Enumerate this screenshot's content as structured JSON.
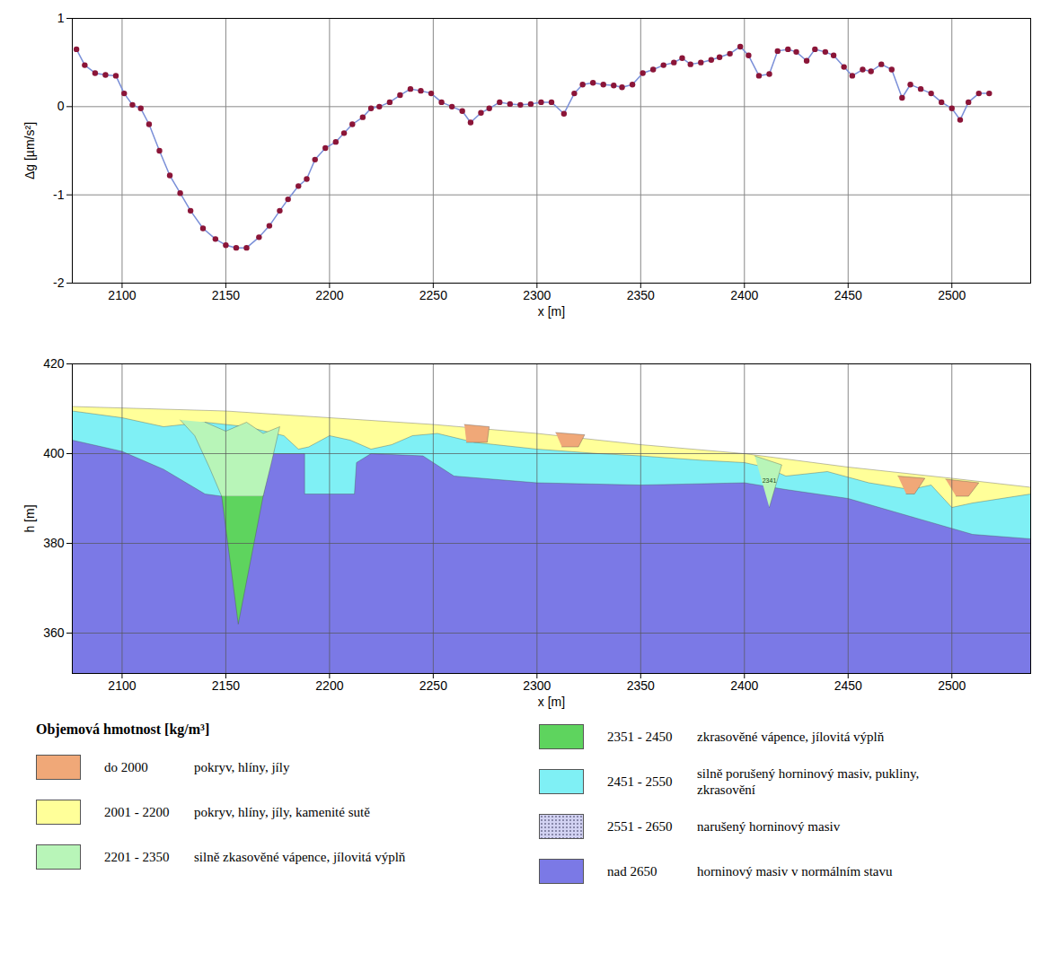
{
  "chart_data": [
    {
      "type": "line",
      "marker": "circle",
      "color": "#7a8fd8",
      "grid": true,
      "x_label": "x [m]",
      "y_label": "Δg [µm/s²]",
      "xlim": [
        2076,
        2538
      ],
      "ylim": [
        -2,
        1
      ],
      "xticks": [
        2100,
        2150,
        2200,
        2250,
        2300,
        2350,
        2400,
        2450,
        2500
      ],
      "yticks": [
        -2,
        -1,
        0,
        1
      ],
      "x": [
        2078,
        2082,
        2087,
        2092,
        2097,
        2101,
        2105,
        2109,
        2113,
        2118,
        2123,
        2128,
        2133,
        2139,
        2145,
        2150,
        2155,
        2160,
        2166,
        2171,
        2176,
        2180,
        2185,
        2189,
        2193,
        2198,
        2203,
        2207,
        2211,
        2216,
        2220,
        2224,
        2229,
        2234,
        2239,
        2244,
        2249,
        2254,
        2259,
        2264,
        2268,
        2273,
        2277,
        2282,
        2287,
        2292,
        2297,
        2302,
        2307,
        2313,
        2318,
        2322,
        2327,
        2332,
        2337,
        2341,
        2346,
        2351,
        2356,
        2361,
        2366,
        2370,
        2374,
        2379,
        2384,
        2388,
        2393,
        2398,
        2402,
        2407,
        2412,
        2416,
        2421,
        2425,
        2430,
        2434,
        2439,
        2443,
        2448,
        2452,
        2457,
        2461,
        2466,
        2471,
        2476,
        2480,
        2485,
        2490,
        2495,
        2500,
        2504,
        2508,
        2513,
        2518
      ],
      "values": [
        0.65,
        0.47,
        0.38,
        0.36,
        0.35,
        0.15,
        0.02,
        -0.02,
        -0.2,
        -0.5,
        -0.78,
        -0.98,
        -1.18,
        -1.38,
        -1.5,
        -1.57,
        -1.6,
        -1.6,
        -1.48,
        -1.35,
        -1.18,
        -1.05,
        -0.9,
        -0.82,
        -0.6,
        -0.47,
        -0.4,
        -0.3,
        -0.2,
        -0.12,
        -0.02,
        0.0,
        0.05,
        0.13,
        0.2,
        0.18,
        0.15,
        0.05,
        0.0,
        -0.05,
        -0.18,
        -0.07,
        -0.02,
        0.05,
        0.03,
        0.02,
        0.03,
        0.05,
        0.05,
        -0.08,
        0.15,
        0.25,
        0.27,
        0.25,
        0.24,
        0.22,
        0.25,
        0.38,
        0.42,
        0.47,
        0.5,
        0.55,
        0.48,
        0.5,
        0.53,
        0.56,
        0.6,
        0.68,
        0.58,
        0.35,
        0.37,
        0.63,
        0.65,
        0.62,
        0.52,
        0.65,
        0.62,
        0.58,
        0.45,
        0.35,
        0.42,
        0.4,
        0.48,
        0.42,
        0.1,
        0.25,
        0.2,
        0.15,
        0.05,
        -0.02,
        -0.15,
        0.05,
        0.15,
        0.15
      ]
    },
    {
      "type": "area",
      "grid": true,
      "legend": "bottom",
      "x_label": "x [m]",
      "y_label": "h [m]",
      "xlim": [
        2076,
        2538
      ],
      "ylim": [
        351,
        420
      ],
      "xticks": [
        2100,
        2150,
        2200,
        2250,
        2300,
        2350,
        2400,
        2450,
        2500
      ],
      "yticks": [
        360,
        380,
        400,
        420
      ],
      "legend_title": "Objemová hmotnost [kg/m³]",
      "series": [
        {
          "name": "do 2000",
          "description": "pokryv, hlíny, jíly",
          "color": "#f0a878",
          "polygons": [
            [
              [
                2265,
                406.5
              ],
              [
                2277,
                406
              ],
              [
                2276,
                402.5
              ],
              [
                2266,
                402.5
              ]
            ],
            [
              [
                2309,
                404.7
              ],
              [
                2323,
                404.2
              ],
              [
                2320,
                401.5
              ],
              [
                2312,
                401.5
              ]
            ],
            [
              [
                2474,
                395
              ],
              [
                2487,
                394.5
              ],
              [
                2482,
                391
              ],
              [
                2478,
                391
              ]
            ],
            [
              [
                2497,
                394.3
              ],
              [
                2513,
                393.5
              ],
              [
                2508,
                390.5
              ],
              [
                2502,
                390.5
              ]
            ]
          ]
        },
        {
          "name": "2001 - 2200",
          "description": "pokryv, hlíny, jíly, kamenité sutě",
          "color": "#ffff99",
          "polygons": [
            [
              [
                2076,
                351
              ],
              [
                2076,
                410.5
              ],
              [
                2150,
                409.5
              ],
              [
                2200,
                408
              ],
              [
                2250,
                406.5
              ],
              [
                2300,
                404.5
              ],
              [
                2350,
                402
              ],
              [
                2400,
                400
              ],
              [
                2450,
                397
              ],
              [
                2500,
                394.5
              ],
              [
                2538,
                392.5
              ],
              [
                2538,
                351
              ]
            ]
          ]
        },
        {
          "name": "2201 - 2350",
          "description": "silně zkasověné vápence, jílovitá výplň",
          "color": "#b8f5b8",
          "polygons": [
            [
              [
                2128,
                407.5
              ],
              [
                2135,
                404
              ],
              [
                2142,
                397
              ],
              [
                2148,
                390.5
              ],
              [
                2168,
                390.5
              ],
              [
                2172,
                398
              ],
              [
                2176,
                406
              ],
              [
                2168,
                404.5
              ],
              [
                2160,
                407
              ],
              [
                2150,
                405
              ],
              [
                2140,
                407
              ]
            ],
            [
              [
                2405,
                399.5
              ],
              [
                2418,
                397.5
              ],
              [
                2412,
                388
              ]
            ]
          ]
        },
        {
          "name": "2351 - 2450",
          "description": "zkrasověné vápence, jílovitá výplň",
          "color": "#5ed45e",
          "polygons": [
            [
              [
                2148,
                390.5
              ],
              [
                2156,
                362
              ],
              [
                2168,
                390.5
              ]
            ]
          ]
        },
        {
          "name": "2451 - 2550",
          "description": "silně porušený horninový masiv, pukliny, zkrasovění",
          "color": "#7ff0f5",
          "polygons": [
            [
              [
                2076,
                351
              ],
              [
                2076,
                409.5
              ],
              [
                2100,
                408
              ],
              [
                2120,
                406
              ],
              [
                2140,
                407
              ],
              [
                2160,
                406
              ],
              [
                2178,
                404
              ],
              [
                2185,
                401
              ],
              [
                2190,
                401.5
              ],
              [
                2200,
                404
              ],
              [
                2210,
                403
              ],
              [
                2220,
                401
              ],
              [
                2230,
                402
              ],
              [
                2240,
                404
              ],
              [
                2252,
                404.5
              ],
              [
                2270,
                402.5
              ],
              [
                2300,
                401
              ],
              [
                2330,
                400
              ],
              [
                2350,
                399.5
              ],
              [
                2380,
                398.5
              ],
              [
                2400,
                398
              ],
              [
                2410,
                397
              ],
              [
                2420,
                395
              ],
              [
                2440,
                396
              ],
              [
                2460,
                393.5
              ],
              [
                2480,
                392
              ],
              [
                2490,
                393
              ],
              [
                2500,
                388
              ],
              [
                2510,
                389
              ],
              [
                2538,
                391
              ],
              [
                2538,
                351
              ]
            ]
          ]
        },
        {
          "name": "2551 - 2650",
          "description": "narušený horninový masiv",
          "color": "#d2d2f2",
          "polygons": []
        },
        {
          "name": "nad 2650",
          "description": "horninový masiv v normálním stavu",
          "color": "#7b79e6",
          "polygons": [
            [
              [
                2076,
                351
              ],
              [
                2076,
                403
              ],
              [
                2100,
                400.5
              ],
              [
                2120,
                396.5
              ],
              [
                2140,
                391
              ],
              [
                2148,
                390.5
              ],
              [
                2168,
                390.5
              ],
              [
                2172,
                400
              ],
              [
                2188,
                400
              ],
              [
                2188,
                391
              ],
              [
                2212,
                391
              ],
              [
                2213,
                398
              ],
              [
                2220,
                400
              ],
              [
                2245,
                399.5
              ],
              [
                2260,
                395
              ],
              [
                2300,
                393.5
              ],
              [
                2350,
                393
              ],
              [
                2400,
                393.5
              ],
              [
                2420,
                392
              ],
              [
                2450,
                390
              ],
              [
                2480,
                386
              ],
              [
                2510,
                382
              ],
              [
                2538,
                381
              ],
              [
                2538,
                351
              ]
            ]
          ]
        }
      ],
      "annotations": [
        {
          "x": 2412,
          "y": 394,
          "text": "2341"
        }
      ]
    }
  ]
}
